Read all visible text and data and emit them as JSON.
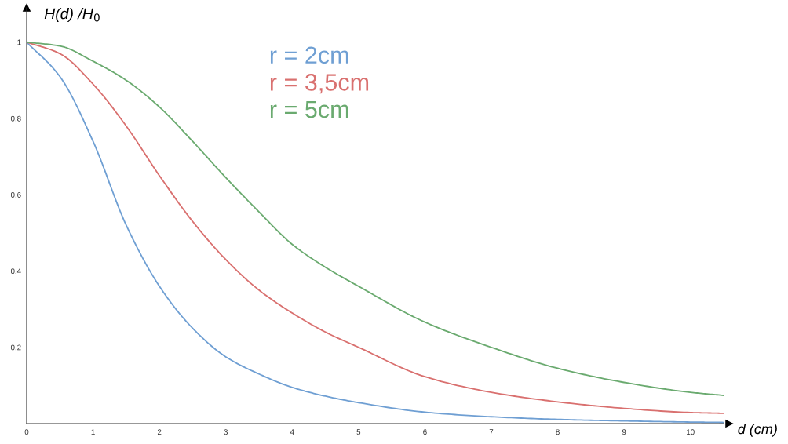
{
  "chart_data": {
    "type": "line",
    "xlabel": "d (cm)",
    "ylabel": "H(d) /H$_{0}$",
    "x": [
      0,
      0.5,
      1,
      1.5,
      2,
      2.5,
      3,
      3.5,
      4,
      4.5,
      5,
      6,
      7,
      8,
      9,
      10,
      10.5
    ],
    "series": [
      {
        "name": "r = 2cm",
        "color": "#6f9fd3",
        "values": [
          1,
          0.91,
          0.74,
          0.52,
          0.36,
          0.25,
          0.175,
          0.13,
          0.095,
          0.072,
          0.055,
          0.03,
          0.018,
          0.011,
          0.007,
          0.004,
          0.003
        ]
      },
      {
        "name": "r = 3,5cm",
        "color": "#d9706f",
        "values": [
          1,
          0.97,
          0.89,
          0.78,
          0.65,
          0.53,
          0.43,
          0.35,
          0.29,
          0.24,
          0.2,
          0.123,
          0.082,
          0.057,
          0.04,
          0.029,
          0.027
        ]
      },
      {
        "name": "r = 5cm",
        "color": "#6aaa6f",
        "values": [
          1,
          0.99,
          0.95,
          0.9,
          0.83,
          0.74,
          0.645,
          0.555,
          0.47,
          0.41,
          0.36,
          0.266,
          0.2,
          0.145,
          0.108,
          0.082,
          0.074
        ]
      }
    ],
    "xlim": [
      0,
      10.5
    ],
    "ylim": [
      0,
      1.09
    ],
    "xticks": [
      0,
      1,
      2,
      3,
      4,
      5,
      6,
      7,
      8,
      9,
      10
    ],
    "yticks": [
      0.2,
      0.4,
      0.6,
      0.8,
      1
    ],
    "grid": false,
    "legend": "top",
    "marker": "none",
    "line_style": "solid"
  }
}
